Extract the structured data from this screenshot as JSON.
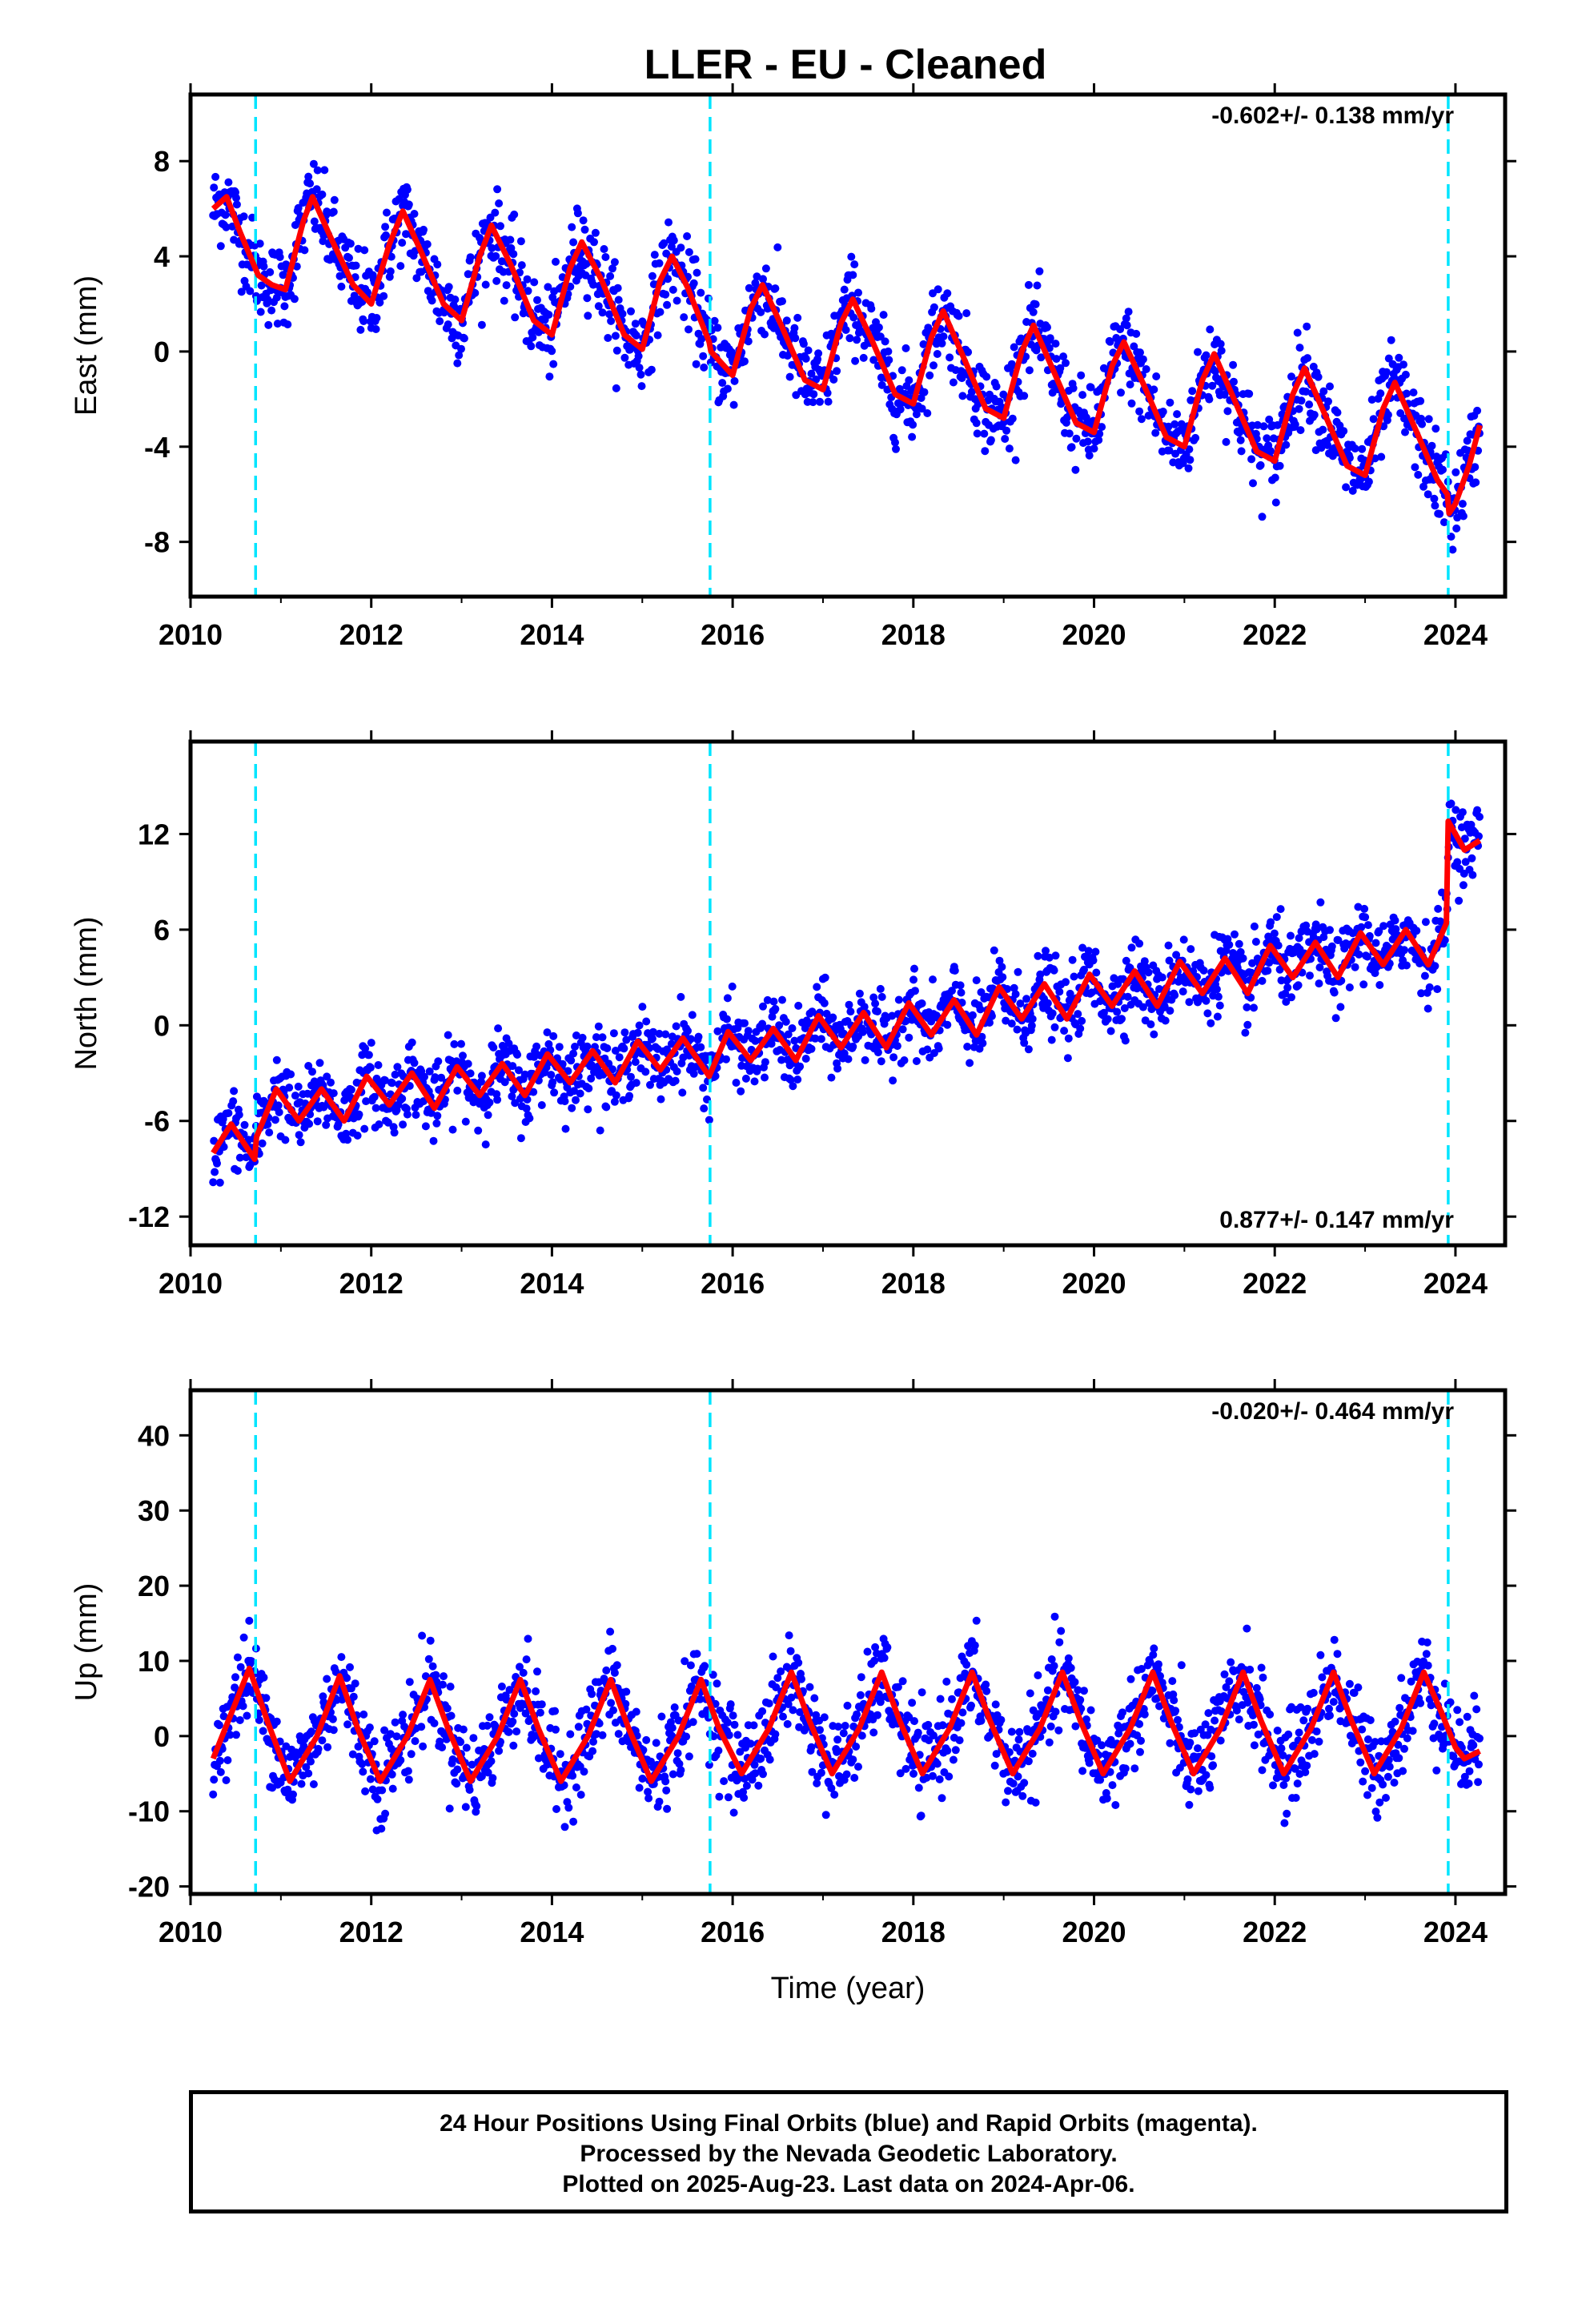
{
  "chart_data": [
    {
      "type": "scatter",
      "title": "LLER  - EU - Cleaned",
      "ylabel": "East (mm)",
      "xlabel": "",
      "xlim": [
        2010.0,
        2024.55
      ],
      "ylim": [
        -10.3,
        10.8
      ],
      "xticks": [
        "2010",
        "2012",
        "2014",
        "2016",
        "2018",
        "2020",
        "2022",
        "2024"
      ],
      "yticks": [
        "-8",
        "-4",
        "0",
        "4",
        "8"
      ],
      "rate_label": "-0.602+/- 0.138 mm/yr",
      "rate_position": "top-right",
      "grid": false,
      "offsets": [
        2010.72,
        2015.75,
        2023.92
      ],
      "points_color": "#0000ff",
      "model_color": "#ff0000",
      "offset_color": "#00e5ff",
      "model": [
        [
          2010.25,
          6.0
        ],
        [
          2010.4,
          6.5
        ],
        [
          2010.55,
          5.0
        ],
        [
          2010.75,
          3.2
        ],
        [
          2010.9,
          2.8
        ],
        [
          2011.05,
          2.6
        ],
        [
          2011.25,
          5.5
        ],
        [
          2011.35,
          6.5
        ],
        [
          2011.55,
          4.8
        ],
        [
          2011.8,
          2.8
        ],
        [
          2012.0,
          2.0
        ],
        [
          2012.2,
          4.5
        ],
        [
          2012.35,
          5.9
        ],
        [
          2012.55,
          4.2
        ],
        [
          2012.8,
          2.0
        ],
        [
          2013.0,
          1.3
        ],
        [
          2013.2,
          4.0
        ],
        [
          2013.33,
          5.3
        ],
        [
          2013.55,
          3.6
        ],
        [
          2013.8,
          1.3
        ],
        [
          2014.0,
          0.7
        ],
        [
          2014.2,
          3.5
        ],
        [
          2014.33,
          4.6
        ],
        [
          2014.55,
          3.0
        ],
        [
          2014.8,
          0.7
        ],
        [
          2015.0,
          0.1
        ],
        [
          2015.2,
          3.0
        ],
        [
          2015.33,
          4.0
        ],
        [
          2015.5,
          2.7
        ],
        [
          2015.74,
          0.4
        ],
        [
          2015.76,
          0.0
        ],
        [
          2016.0,
          -1.0
        ],
        [
          2016.2,
          1.8
        ],
        [
          2016.33,
          2.8
        ],
        [
          2016.55,
          1.0
        ],
        [
          2016.8,
          -1.2
        ],
        [
          2017.0,
          -1.6
        ],
        [
          2017.2,
          1.2
        ],
        [
          2017.33,
          2.2
        ],
        [
          2017.55,
          0.4
        ],
        [
          2017.8,
          -1.8
        ],
        [
          2018.0,
          -2.2
        ],
        [
          2018.2,
          0.6
        ],
        [
          2018.33,
          1.7
        ],
        [
          2018.55,
          -0.2
        ],
        [
          2018.8,
          -2.4
        ],
        [
          2019.0,
          -2.8
        ],
        [
          2019.2,
          0.0
        ],
        [
          2019.33,
          1.1
        ],
        [
          2019.55,
          -0.8
        ],
        [
          2019.8,
          -3.0
        ],
        [
          2020.0,
          -3.4
        ],
        [
          2020.2,
          -0.6
        ],
        [
          2020.33,
          0.4
        ],
        [
          2020.55,
          -1.4
        ],
        [
          2020.8,
          -3.6
        ],
        [
          2021.0,
          -4.0
        ],
        [
          2021.2,
          -1.2
        ],
        [
          2021.33,
          -0.1
        ],
        [
          2021.55,
          -2.0
        ],
        [
          2021.8,
          -4.2
        ],
        [
          2022.0,
          -4.6
        ],
        [
          2022.2,
          -1.8
        ],
        [
          2022.33,
          -0.7
        ],
        [
          2022.55,
          -2.6
        ],
        [
          2022.8,
          -4.8
        ],
        [
          2023.0,
          -5.2
        ],
        [
          2023.2,
          -2.4
        ],
        [
          2023.33,
          -1.3
        ],
        [
          2023.55,
          -3.2
        ],
        [
          2023.8,
          -5.4
        ],
        [
          2023.91,
          -6.0
        ],
        [
          2023.93,
          -6.8
        ],
        [
          2024.0,
          -6.4
        ],
        [
          2024.15,
          -4.8
        ],
        [
          2024.27,
          -3.1
        ]
      ]
    },
    {
      "type": "scatter",
      "title": "",
      "ylabel": "North (mm)",
      "xlabel": "",
      "xlim": [
        2010.0,
        2024.55
      ],
      "ylim": [
        -13.8,
        17.8
      ],
      "xticks": [
        "2010",
        "2012",
        "2014",
        "2016",
        "2018",
        "2020",
        "2022",
        "2024"
      ],
      "yticks": [
        "-12",
        "-6",
        "0",
        "6",
        "12"
      ],
      "rate_label": "0.877+/- 0.147 mm/yr",
      "rate_position": "bottom-right",
      "grid": false,
      "offsets": [
        2010.72,
        2015.75,
        2023.92
      ],
      "points_color": "#0000ff",
      "model_color": "#ff0000",
      "offset_color": "#00e5ff",
      "model": [
        [
          2010.25,
          -8.0
        ],
        [
          2010.45,
          -6.2
        ],
        [
          2010.71,
          -8.4
        ],
        [
          2010.73,
          -7.0
        ],
        [
          2010.95,
          -4.0
        ],
        [
          2011.2,
          -6.0
        ],
        [
          2011.45,
          -4.0
        ],
        [
          2011.7,
          -6.0
        ],
        [
          2011.95,
          -3.2
        ],
        [
          2012.2,
          -5.0
        ],
        [
          2012.45,
          -3.0
        ],
        [
          2012.7,
          -5.2
        ],
        [
          2012.95,
          -2.6
        ],
        [
          2013.2,
          -4.4
        ],
        [
          2013.45,
          -2.4
        ],
        [
          2013.7,
          -4.4
        ],
        [
          2013.95,
          -1.8
        ],
        [
          2014.2,
          -3.6
        ],
        [
          2014.45,
          -1.6
        ],
        [
          2014.7,
          -3.6
        ],
        [
          2014.95,
          -1.0
        ],
        [
          2015.2,
          -2.8
        ],
        [
          2015.45,
          -0.8
        ],
        [
          2015.74,
          -3.2
        ],
        [
          2015.95,
          -0.4
        ],
        [
          2016.2,
          -2.2
        ],
        [
          2016.45,
          -0.2
        ],
        [
          2016.7,
          -2.2
        ],
        [
          2016.95,
          0.6
        ],
        [
          2017.2,
          -1.4
        ],
        [
          2017.45,
          0.8
        ],
        [
          2017.7,
          -1.4
        ],
        [
          2017.95,
          1.4
        ],
        [
          2018.2,
          -0.6
        ],
        [
          2018.45,
          1.6
        ],
        [
          2018.7,
          -0.6
        ],
        [
          2018.95,
          2.4
        ],
        [
          2019.2,
          0.4
        ],
        [
          2019.45,
          2.6
        ],
        [
          2019.7,
          0.4
        ],
        [
          2019.95,
          3.2
        ],
        [
          2020.2,
          1.2
        ],
        [
          2020.45,
          3.4
        ],
        [
          2020.7,
          1.2
        ],
        [
          2020.95,
          4.0
        ],
        [
          2021.2,
          2.0
        ],
        [
          2021.45,
          4.2
        ],
        [
          2021.7,
          2.0
        ],
        [
          2021.95,
          5.0
        ],
        [
          2022.2,
          3.0
        ],
        [
          2022.45,
          5.2
        ],
        [
          2022.7,
          3.0
        ],
        [
          2022.95,
          5.8
        ],
        [
          2023.2,
          3.8
        ],
        [
          2023.45,
          6.0
        ],
        [
          2023.7,
          3.8
        ],
        [
          2023.9,
          6.4
        ],
        [
          2023.92,
          12.8
        ],
        [
          2024.1,
          11.0
        ],
        [
          2024.27,
          11.6
        ]
      ]
    },
    {
      "type": "scatter",
      "title": "",
      "ylabel": "Up (mm)",
      "xlabel": "Time (year)",
      "xlim": [
        2010.0,
        2024.55
      ],
      "ylim": [
        -21.0,
        46.0
      ],
      "xticks": [
        "2010",
        "2012",
        "2014",
        "2016",
        "2018",
        "2020",
        "2022",
        "2024"
      ],
      "yticks": [
        "-20",
        "-10",
        "0",
        "10",
        "20",
        "30",
        "40"
      ],
      "rate_label": "-0.020+/- 0.464 mm/yr",
      "rate_position": "top-right",
      "grid": false,
      "offsets": [
        2010.72,
        2015.75,
        2023.92
      ],
      "points_color": "#0000ff",
      "model_color": "#ff0000",
      "offset_color": "#00e5ff",
      "model": [
        [
          2010.25,
          -3.0
        ],
        [
          2010.45,
          3.0
        ],
        [
          2010.65,
          9.0
        ],
        [
          2010.85,
          2.0
        ],
        [
          2011.1,
          -6.0
        ],
        [
          2011.4,
          0.0
        ],
        [
          2011.65,
          8.0
        ],
        [
          2011.85,
          1.0
        ],
        [
          2012.1,
          -6.0
        ],
        [
          2012.4,
          0.0
        ],
        [
          2012.65,
          7.5
        ],
        [
          2012.85,
          1.0
        ],
        [
          2013.1,
          -6.0
        ],
        [
          2013.4,
          0.0
        ],
        [
          2013.65,
          7.5
        ],
        [
          2013.85,
          1.0
        ],
        [
          2014.1,
          -6.0
        ],
        [
          2014.4,
          0.0
        ],
        [
          2014.65,
          7.5
        ],
        [
          2014.85,
          1.0
        ],
        [
          2015.1,
          -6.0
        ],
        [
          2015.4,
          0.0
        ],
        [
          2015.65,
          7.5
        ],
        [
          2015.85,
          1.0
        ],
        [
          2016.1,
          -5.0
        ],
        [
          2016.4,
          1.0
        ],
        [
          2016.65,
          8.5
        ],
        [
          2016.85,
          2.0
        ],
        [
          2017.1,
          -5.0
        ],
        [
          2017.4,
          1.0
        ],
        [
          2017.65,
          8.5
        ],
        [
          2017.85,
          2.0
        ],
        [
          2018.1,
          -5.0
        ],
        [
          2018.4,
          1.0
        ],
        [
          2018.65,
          8.5
        ],
        [
          2018.85,
          2.0
        ],
        [
          2019.1,
          -5.0
        ],
        [
          2019.4,
          1.0
        ],
        [
          2019.65,
          8.5
        ],
        [
          2019.85,
          2.0
        ],
        [
          2020.1,
          -5.0
        ],
        [
          2020.4,
          1.0
        ],
        [
          2020.65,
          8.5
        ],
        [
          2020.85,
          2.0
        ],
        [
          2021.1,
          -5.0
        ],
        [
          2021.4,
          1.0
        ],
        [
          2021.65,
          8.5
        ],
        [
          2021.85,
          2.0
        ],
        [
          2022.1,
          -5.0
        ],
        [
          2022.4,
          1.0
        ],
        [
          2022.65,
          8.5
        ],
        [
          2022.85,
          2.0
        ],
        [
          2023.1,
          -5.0
        ],
        [
          2023.4,
          1.0
        ],
        [
          2023.65,
          8.5
        ],
        [
          2023.85,
          3.0
        ],
        [
          2024.0,
          -1.5
        ],
        [
          2024.1,
          -3.0
        ],
        [
          2024.27,
          -2.0
        ]
      ]
    }
  ],
  "footer": {
    "line1": "24 Hour Positions Using Final Orbits (blue) and Rapid Orbits (magenta).",
    "line2": "Processed by the Nevada Geodetic Laboratory.",
    "line3": "Plotted on 2025-Aug-23. Last data on 2024-Apr-06."
  }
}
